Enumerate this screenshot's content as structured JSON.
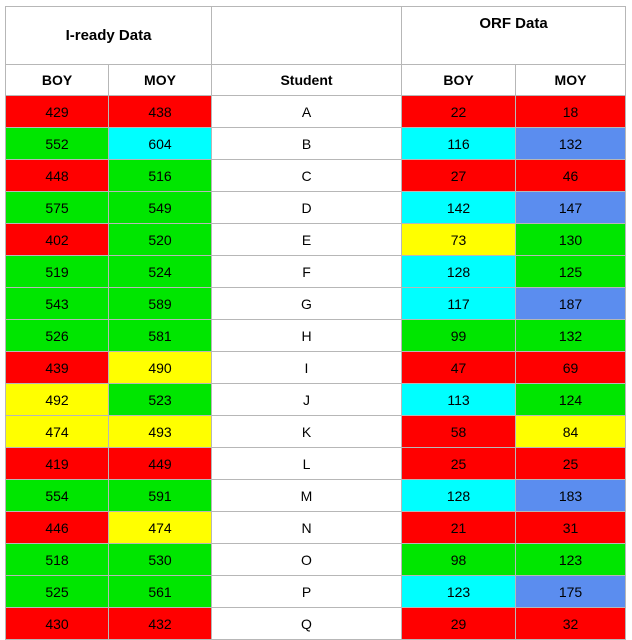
{
  "headers": {
    "iready_group": "I-ready Data",
    "orf_group": "ORF Data",
    "iready_boy": "BOY",
    "iready_moy": "MOY",
    "student": "Student",
    "orf_boy": "BOY",
    "orf_moy": "MOY"
  },
  "colors": {
    "red": "#ff0000",
    "green": "#00e600",
    "cyan": "#00ffff",
    "blue": "#5b8def",
    "yellow": "#ffff00",
    "white": "#ffffff"
  },
  "rows": [
    {
      "student": "A",
      "iready_boy": {
        "v": "429",
        "c": "red"
      },
      "iready_moy": {
        "v": "438",
        "c": "red"
      },
      "orf_boy": {
        "v": "22",
        "c": "red"
      },
      "orf_moy": {
        "v": "18",
        "c": "red"
      }
    },
    {
      "student": "B",
      "iready_boy": {
        "v": "552",
        "c": "green"
      },
      "iready_moy": {
        "v": "604",
        "c": "cyan"
      },
      "orf_boy": {
        "v": "116",
        "c": "cyan"
      },
      "orf_moy": {
        "v": "132",
        "c": "blue"
      }
    },
    {
      "student": "C",
      "iready_boy": {
        "v": "448",
        "c": "red"
      },
      "iready_moy": {
        "v": "516",
        "c": "green"
      },
      "orf_boy": {
        "v": "27",
        "c": "red"
      },
      "orf_moy": {
        "v": "46",
        "c": "red"
      }
    },
    {
      "student": "D",
      "iready_boy": {
        "v": "575",
        "c": "green"
      },
      "iready_moy": {
        "v": "549",
        "c": "green"
      },
      "orf_boy": {
        "v": "142",
        "c": "cyan"
      },
      "orf_moy": {
        "v": "147",
        "c": "blue"
      }
    },
    {
      "student": "E",
      "iready_boy": {
        "v": "402",
        "c": "red"
      },
      "iready_moy": {
        "v": "520",
        "c": "green"
      },
      "orf_boy": {
        "v": "73",
        "c": "yellow"
      },
      "orf_moy": {
        "v": "130",
        "c": "green"
      }
    },
    {
      "student": "F",
      "iready_boy": {
        "v": "519",
        "c": "green"
      },
      "iready_moy": {
        "v": "524",
        "c": "green"
      },
      "orf_boy": {
        "v": "128",
        "c": "cyan"
      },
      "orf_moy": {
        "v": "125",
        "c": "green"
      }
    },
    {
      "student": "G",
      "iready_boy": {
        "v": "543",
        "c": "green"
      },
      "iready_moy": {
        "v": "589",
        "c": "green"
      },
      "orf_boy": {
        "v": "117",
        "c": "cyan"
      },
      "orf_moy": {
        "v": "187",
        "c": "blue"
      }
    },
    {
      "student": "H",
      "iready_boy": {
        "v": "526",
        "c": "green"
      },
      "iready_moy": {
        "v": "581",
        "c": "green"
      },
      "orf_boy": {
        "v": "99",
        "c": "green"
      },
      "orf_moy": {
        "v": "132",
        "c": "green"
      }
    },
    {
      "student": "I",
      "iready_boy": {
        "v": "439",
        "c": "red"
      },
      "iready_moy": {
        "v": "490",
        "c": "yellow"
      },
      "orf_boy": {
        "v": "47",
        "c": "red"
      },
      "orf_moy": {
        "v": "69",
        "c": "red"
      }
    },
    {
      "student": "J",
      "iready_boy": {
        "v": "492",
        "c": "yellow"
      },
      "iready_moy": {
        "v": "523",
        "c": "green"
      },
      "orf_boy": {
        "v": "113",
        "c": "cyan"
      },
      "orf_moy": {
        "v": "124",
        "c": "green"
      }
    },
    {
      "student": "K",
      "iready_boy": {
        "v": "474",
        "c": "yellow"
      },
      "iready_moy": {
        "v": "493",
        "c": "yellow"
      },
      "orf_boy": {
        "v": "58",
        "c": "red"
      },
      "orf_moy": {
        "v": "84",
        "c": "yellow"
      }
    },
    {
      "student": "L",
      "iready_boy": {
        "v": "419",
        "c": "red"
      },
      "iready_moy": {
        "v": "449",
        "c": "red"
      },
      "orf_boy": {
        "v": "25",
        "c": "red"
      },
      "orf_moy": {
        "v": "25",
        "c": "red"
      }
    },
    {
      "student": "M",
      "iready_boy": {
        "v": "554",
        "c": "green"
      },
      "iready_moy": {
        "v": "591",
        "c": "green"
      },
      "orf_boy": {
        "v": "128",
        "c": "cyan"
      },
      "orf_moy": {
        "v": "183",
        "c": "blue"
      }
    },
    {
      "student": "N",
      "iready_boy": {
        "v": "446",
        "c": "red"
      },
      "iready_moy": {
        "v": "474",
        "c": "yellow"
      },
      "orf_boy": {
        "v": "21",
        "c": "red"
      },
      "orf_moy": {
        "v": "31",
        "c": "red"
      }
    },
    {
      "student": "O",
      "iready_boy": {
        "v": "518",
        "c": "green"
      },
      "iready_moy": {
        "v": "530",
        "c": "green"
      },
      "orf_boy": {
        "v": "98",
        "c": "green"
      },
      "orf_moy": {
        "v": "123",
        "c": "green"
      }
    },
    {
      "student": "P",
      "iready_boy": {
        "v": "525",
        "c": "green"
      },
      "iready_moy": {
        "v": "561",
        "c": "green"
      },
      "orf_boy": {
        "v": "123",
        "c": "cyan"
      },
      "orf_moy": {
        "v": "175",
        "c": "blue"
      }
    },
    {
      "student": "Q",
      "iready_boy": {
        "v": "430",
        "c": "red"
      },
      "iready_moy": {
        "v": "432",
        "c": "red"
      },
      "orf_boy": {
        "v": "29",
        "c": "red"
      },
      "orf_moy": {
        "v": "32",
        "c": "red"
      }
    }
  ]
}
